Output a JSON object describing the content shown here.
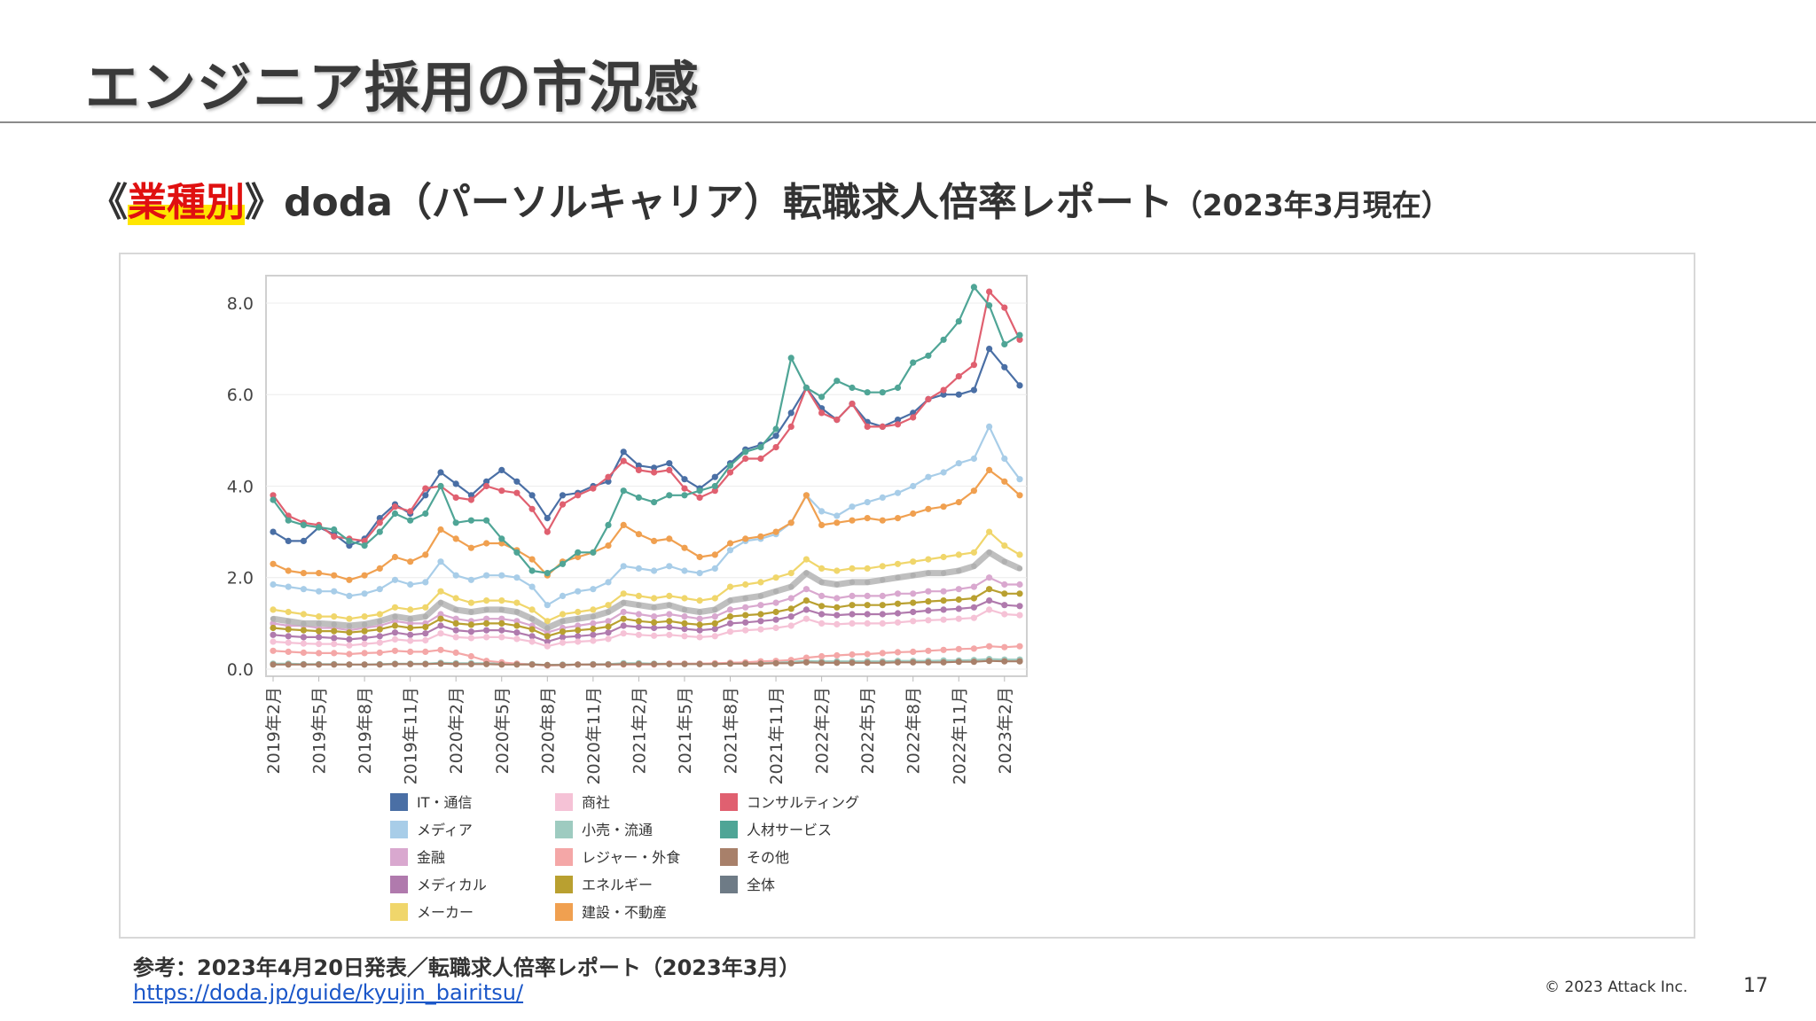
{
  "slide": {
    "title": "エンジニア採用の市況感",
    "subtitle_open": "《",
    "subtitle_highlight": "業種別",
    "subtitle_main": "》doda（パーソルキャリア）転職求人倍率レポート",
    "subtitle_small": "（2023年3月現在）",
    "reference": "参考：2023年4月20日発表／転職求人倍率レポート（2023年3月）",
    "link": "https://doda.jp/guide/kyujin_bairitsu/",
    "copyright": "© 2023 Attack Inc.",
    "page_number": "17"
  },
  "chart_data": {
    "type": "line",
    "ylim": [
      0,
      8.6
    ],
    "yticks": [
      0,
      2,
      4,
      6,
      8
    ],
    "ytick_labels": [
      "0.0",
      "2.0",
      "4.0",
      "6.0",
      "8.0"
    ],
    "grid": true,
    "x": [
      "2019年2月",
      "2019年3月",
      "2019年4月",
      "2019年5月",
      "2019年6月",
      "2019年7月",
      "2019年8月",
      "2019年9月",
      "2019年10月",
      "2019年11月",
      "2019年12月",
      "2020年1月",
      "2020年2月",
      "2020年3月",
      "2020年4月",
      "2020年5月",
      "2020年6月",
      "2020年7月",
      "2020年8月",
      "2020年9月",
      "2020年10月",
      "2020年11月",
      "2020年12月",
      "2021年1月",
      "2021年2月",
      "2021年3月",
      "2021年4月",
      "2021年5月",
      "2021年6月",
      "2021年7月",
      "2021年8月",
      "2021年9月",
      "2021年10月",
      "2021年11月",
      "2021年12月",
      "2022年1月",
      "2022年2月",
      "2022年3月",
      "2022年4月",
      "2022年5月",
      "2022年6月",
      "2022年7月",
      "2022年8月",
      "2022年9月",
      "2022年10月",
      "2022年11月",
      "2022年12月",
      "2023年1月",
      "2023年2月",
      "2023年3月"
    ],
    "xtick_labels": [
      "2019年2月",
      "2019年5月",
      "2019年8月",
      "2019年11月",
      "2020年2月",
      "2020年5月",
      "2020年8月",
      "2020年11月",
      "2021年2月",
      "2021年5月",
      "2021年8月",
      "2021年11月",
      "2022年2月",
      "2022年5月",
      "2022年8月",
      "2022年11月",
      "2023年2月"
    ],
    "legend_position": "bottom",
    "series": [
      {
        "name": "IT・通信",
        "color": "#4a6fa5",
        "values": [
          3.0,
          2.8,
          2.8,
          3.1,
          2.95,
          2.7,
          2.85,
          3.3,
          3.6,
          3.4,
          3.8,
          4.3,
          4.05,
          3.8,
          4.1,
          4.35,
          4.1,
          3.8,
          3.3,
          3.8,
          3.85,
          4.0,
          4.1,
          4.75,
          4.45,
          4.4,
          4.5,
          4.15,
          3.95,
          4.2,
          4.5,
          4.8,
          4.9,
          5.1,
          5.6,
          6.15,
          5.7,
          5.45,
          5.8,
          5.4,
          5.3,
          5.45,
          5.6,
          5.9,
          6.0,
          6.0,
          6.1,
          7.0,
          6.6,
          6.2
        ]
      },
      {
        "name": "メディア",
        "color": "#a8cde8",
        "values": [
          1.85,
          1.8,
          1.75,
          1.7,
          1.7,
          1.6,
          1.65,
          1.75,
          1.95,
          1.85,
          1.9,
          2.35,
          2.05,
          1.95,
          2.05,
          2.05,
          2.0,
          1.8,
          1.4,
          1.6,
          1.7,
          1.75,
          1.9,
          2.25,
          2.2,
          2.15,
          2.25,
          2.15,
          2.1,
          2.2,
          2.6,
          2.8,
          2.85,
          2.95,
          3.2,
          3.8,
          3.45,
          3.35,
          3.55,
          3.65,
          3.75,
          3.85,
          4.0,
          4.2,
          4.3,
          4.5,
          4.6,
          5.3,
          4.6,
          4.15
        ]
      },
      {
        "name": "金融",
        "color": "#d9a8cf",
        "values": [
          1.0,
          0.95,
          0.95,
          0.9,
          0.9,
          0.85,
          0.9,
          0.95,
          1.05,
          1.0,
          1.0,
          1.2,
          1.1,
          1.05,
          1.1,
          1.1,
          1.05,
          0.95,
          0.8,
          0.9,
          0.95,
          1.0,
          1.05,
          1.25,
          1.2,
          1.15,
          1.2,
          1.15,
          1.1,
          1.15,
          1.3,
          1.35,
          1.4,
          1.45,
          1.55,
          1.75,
          1.6,
          1.55,
          1.6,
          1.6,
          1.6,
          1.65,
          1.65,
          1.7,
          1.7,
          1.75,
          1.8,
          2.0,
          1.85,
          1.85
        ]
      },
      {
        "name": "メディカル",
        "color": "#b07aad",
        "values": [
          0.75,
          0.72,
          0.7,
          0.7,
          0.68,
          0.65,
          0.68,
          0.72,
          0.8,
          0.75,
          0.78,
          0.95,
          0.85,
          0.82,
          0.85,
          0.85,
          0.8,
          0.72,
          0.6,
          0.7,
          0.72,
          0.75,
          0.8,
          0.95,
          0.92,
          0.9,
          0.92,
          0.88,
          0.85,
          0.88,
          1.0,
          1.02,
          1.05,
          1.08,
          1.15,
          1.3,
          1.2,
          1.18,
          1.2,
          1.2,
          1.2,
          1.22,
          1.25,
          1.28,
          1.3,
          1.32,
          1.35,
          1.5,
          1.4,
          1.38
        ]
      },
      {
        "name": "メーカー",
        "color": "#f0d66b",
        "values": [
          1.3,
          1.25,
          1.2,
          1.15,
          1.15,
          1.1,
          1.15,
          1.2,
          1.35,
          1.3,
          1.35,
          1.7,
          1.55,
          1.45,
          1.5,
          1.5,
          1.45,
          1.3,
          1.05,
          1.2,
          1.25,
          1.3,
          1.4,
          1.65,
          1.6,
          1.55,
          1.6,
          1.55,
          1.5,
          1.55,
          1.8,
          1.85,
          1.9,
          2.0,
          2.1,
          2.4,
          2.2,
          2.15,
          2.2,
          2.2,
          2.25,
          2.3,
          2.35,
          2.4,
          2.45,
          2.5,
          2.55,
          3.0,
          2.7,
          2.5
        ]
      },
      {
        "name": "商社",
        "color": "#f5c2d6",
        "values": [
          0.6,
          0.58,
          0.56,
          0.55,
          0.55,
          0.52,
          0.55,
          0.58,
          0.65,
          0.62,
          0.63,
          0.78,
          0.7,
          0.68,
          0.7,
          0.7,
          0.66,
          0.6,
          0.5,
          0.58,
          0.6,
          0.62,
          0.66,
          0.78,
          0.75,
          0.73,
          0.75,
          0.72,
          0.7,
          0.72,
          0.82,
          0.85,
          0.87,
          0.9,
          0.95,
          1.1,
          1.0,
          0.98,
          1.0,
          1.0,
          1.0,
          1.02,
          1.05,
          1.07,
          1.08,
          1.1,
          1.12,
          1.3,
          1.2,
          1.18
        ]
      },
      {
        "name": "小売・流通",
        "color": "#9ecbc0",
        "values": [
          0.12,
          0.12,
          0.11,
          0.11,
          0.11,
          0.1,
          0.1,
          0.11,
          0.12,
          0.12,
          0.12,
          0.14,
          0.13,
          0.13,
          0.13,
          0.12,
          0.12,
          0.11,
          0.09,
          0.1,
          0.1,
          0.11,
          0.11,
          0.13,
          0.13,
          0.12,
          0.12,
          0.12,
          0.12,
          0.12,
          0.14,
          0.14,
          0.15,
          0.15,
          0.16,
          0.18,
          0.17,
          0.17,
          0.17,
          0.17,
          0.17,
          0.18,
          0.18,
          0.18,
          0.19,
          0.19,
          0.2,
          0.22,
          0.21,
          0.21
        ]
      },
      {
        "name": "レジャー・外食",
        "color": "#f4a7a7",
        "values": [
          0.4,
          0.38,
          0.36,
          0.35,
          0.35,
          0.33,
          0.35,
          0.36,
          0.4,
          0.38,
          0.38,
          0.42,
          0.36,
          0.28,
          0.18,
          0.15,
          0.12,
          0.1,
          0.08,
          0.09,
          0.1,
          0.1,
          0.1,
          0.1,
          0.1,
          0.1,
          0.12,
          0.12,
          0.12,
          0.13,
          0.14,
          0.15,
          0.17,
          0.18,
          0.2,
          0.25,
          0.28,
          0.3,
          0.32,
          0.33,
          0.35,
          0.37,
          0.38,
          0.4,
          0.42,
          0.44,
          0.45,
          0.5,
          0.48,
          0.5
        ]
      },
      {
        "name": "エネルギー",
        "color": "#b9a030",
        "values": [
          0.9,
          0.87,
          0.85,
          0.83,
          0.83,
          0.8,
          0.83,
          0.87,
          0.95,
          0.9,
          0.92,
          1.1,
          1.0,
          0.97,
          1.0,
          1.0,
          0.95,
          0.87,
          0.72,
          0.82,
          0.85,
          0.88,
          0.93,
          1.1,
          1.05,
          1.02,
          1.05,
          1.0,
          0.97,
          1.0,
          1.15,
          1.18,
          1.2,
          1.25,
          1.32,
          1.5,
          1.38,
          1.35,
          1.4,
          1.4,
          1.4,
          1.43,
          1.45,
          1.48,
          1.5,
          1.52,
          1.55,
          1.75,
          1.65,
          1.65
        ]
      },
      {
        "name": "建設・不動産",
        "color": "#f0a050",
        "values": [
          2.3,
          2.15,
          2.1,
          2.1,
          2.05,
          1.95,
          2.05,
          2.2,
          2.45,
          2.35,
          2.5,
          3.05,
          2.85,
          2.65,
          2.75,
          2.75,
          2.6,
          2.4,
          2.05,
          2.35,
          2.45,
          2.55,
          2.7,
          3.15,
          2.95,
          2.8,
          2.85,
          2.65,
          2.45,
          2.5,
          2.75,
          2.85,
          2.9,
          3.0,
          3.2,
          3.8,
          3.15,
          3.2,
          3.25,
          3.3,
          3.25,
          3.3,
          3.4,
          3.5,
          3.55,
          3.65,
          3.9,
          4.35,
          4.1,
          3.8
        ]
      },
      {
        "name": "コンサルティング",
        "color": "#e06070",
        "values": [
          3.8,
          3.35,
          3.2,
          3.15,
          2.9,
          2.85,
          2.8,
          3.2,
          3.55,
          3.45,
          3.95,
          4.0,
          3.75,
          3.7,
          4.0,
          3.9,
          3.85,
          3.5,
          3.0,
          3.6,
          3.8,
          3.95,
          4.2,
          4.55,
          4.35,
          4.3,
          4.35,
          3.95,
          3.75,
          3.9,
          4.3,
          4.6,
          4.6,
          4.85,
          5.3,
          6.15,
          5.6,
          5.45,
          5.8,
          5.3,
          5.3,
          5.35,
          5.5,
          5.9,
          6.1,
          6.4,
          6.65,
          8.25,
          7.9,
          7.2
        ]
      },
      {
        "name": "人材サービス",
        "color": "#4fa596",
        "values": [
          3.7,
          3.25,
          3.15,
          3.1,
          3.05,
          2.8,
          2.7,
          3.0,
          3.4,
          3.25,
          3.4,
          4.0,
          3.2,
          3.25,
          3.25,
          2.85,
          2.55,
          2.15,
          2.1,
          2.3,
          2.55,
          2.55,
          3.15,
          3.9,
          3.75,
          3.65,
          3.8,
          3.8,
          3.9,
          4.0,
          4.45,
          4.75,
          4.85,
          5.25,
          6.8,
          6.15,
          5.95,
          6.3,
          6.15,
          6.05,
          6.05,
          6.15,
          6.7,
          6.85,
          7.2,
          7.6,
          8.35,
          7.95,
          7.1,
          7.3
        ]
      },
      {
        "name": "その他",
        "color": "#a8806a",
        "values": [
          0.1,
          0.1,
          0.1,
          0.1,
          0.1,
          0.1,
          0.1,
          0.1,
          0.11,
          0.11,
          0.11,
          0.12,
          0.11,
          0.11,
          0.11,
          0.1,
          0.1,
          0.1,
          0.09,
          0.09,
          0.1,
          0.1,
          0.1,
          0.11,
          0.11,
          0.11,
          0.11,
          0.11,
          0.11,
          0.11,
          0.12,
          0.12,
          0.12,
          0.13,
          0.13,
          0.15,
          0.14,
          0.14,
          0.14,
          0.14,
          0.14,
          0.15,
          0.15,
          0.15,
          0.15,
          0.16,
          0.16,
          0.18,
          0.17,
          0.17
        ]
      },
      {
        "name": "全体",
        "color": "#6e7b86",
        "values": [
          1.1,
          1.05,
          1.0,
          1.0,
          0.98,
          0.95,
          0.98,
          1.05,
          1.15,
          1.1,
          1.15,
          1.45,
          1.3,
          1.25,
          1.3,
          1.3,
          1.25,
          1.1,
          0.9,
          1.05,
          1.1,
          1.15,
          1.25,
          1.45,
          1.4,
          1.35,
          1.4,
          1.3,
          1.25,
          1.3,
          1.5,
          1.55,
          1.6,
          1.7,
          1.8,
          2.1,
          1.9,
          1.85,
          1.9,
          1.9,
          1.95,
          2.0,
          2.05,
          2.1,
          2.1,
          2.15,
          2.25,
          2.55,
          2.35,
          2.2
        ]
      }
    ]
  }
}
